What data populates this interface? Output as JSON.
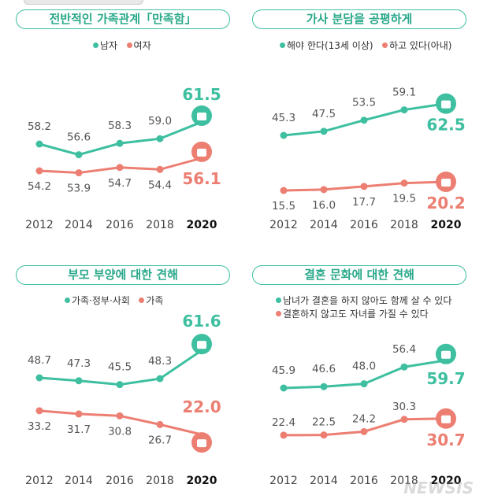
{
  "colors": {
    "teal": "#3dbfa0",
    "salmon": "#ec7e72",
    "tick": "#444"
  },
  "chart_data": [
    {
      "type": "line",
      "title": "전반적인 가족관계「만족함」",
      "categories": [
        "2012",
        "2014",
        "2016",
        "2018",
        "2020"
      ],
      "series": [
        {
          "name": "남자",
          "values": [
            58.2,
            56.6,
            58.3,
            59.0,
            61.5
          ],
          "labels": [
            "58.2",
            "56.6",
            "58.3",
            "59.0",
            "61.5"
          ],
          "icon": "house-icon"
        },
        {
          "name": "여자",
          "values": [
            54.2,
            53.9,
            54.7,
            54.4,
            56.1
          ],
          "labels": [
            "54.2",
            "53.9",
            "54.7",
            "54.4",
            "56.1"
          ],
          "icon": "house-icon"
        }
      ]
    },
    {
      "type": "line",
      "title": "가사 분담을 공평하게",
      "categories": [
        "2012",
        "2014",
        "2016",
        "2018",
        "2020"
      ],
      "series": [
        {
          "name": "해야 한다(13세 이상)",
          "values": [
            45.3,
            47.5,
            53.5,
            59.1,
            62.5
          ],
          "labels": [
            "45.3",
            "47.5",
            "53.5",
            "59.1",
            "62.5"
          ],
          "icon": "spray-bottle-icon"
        },
        {
          "name": "하고 있다(아내)",
          "values": [
            15.5,
            16.0,
            17.7,
            19.5,
            20.2
          ],
          "labels": [
            "15.5",
            "16.0",
            "17.7",
            "19.5",
            "20.2"
          ],
          "icon": "woman-face-icon"
        }
      ]
    },
    {
      "type": "line",
      "title": "부모 부양에 대한 견해",
      "categories": [
        "2012",
        "2014",
        "2016",
        "2018",
        "2020"
      ],
      "series": [
        {
          "name": "가족·정부·사회",
          "values": [
            48.7,
            47.3,
            45.5,
            48.3,
            61.6
          ],
          "labels": [
            "48.7",
            "47.3",
            "45.5",
            "48.3",
            "61.6"
          ],
          "icon": "handshake-icon"
        },
        {
          "name": "가족",
          "values": [
            33.2,
            31.7,
            30.8,
            26.7,
            22.0
          ],
          "labels": [
            "33.2",
            "31.7",
            "30.8",
            "26.7",
            "22.0"
          ],
          "icon": "family-icon"
        }
      ]
    },
    {
      "type": "line",
      "title": "결혼 문화에 대한 견해",
      "categories": [
        "2012",
        "2014",
        "2016",
        "2018",
        "2020"
      ],
      "series": [
        {
          "name": "남녀가 결혼을 하지 않아도 함께 살 수 있다",
          "values": [
            45.9,
            46.6,
            48.0,
            56.4,
            59.7
          ],
          "labels": [
            "45.9",
            "46.6",
            "48.0",
            "56.4",
            "59.7"
          ],
          "icon": "couple-icon"
        },
        {
          "name": "결혼하지 않고도 자녀를 가질 수 있다",
          "values": [
            22.4,
            22.5,
            24.2,
            30.3,
            30.7
          ],
          "labels": [
            "22.4",
            "22.5",
            "24.2",
            "30.3",
            "30.7"
          ],
          "icon": "baby-icon"
        }
      ]
    }
  ],
  "watermark": "NEWSIS"
}
